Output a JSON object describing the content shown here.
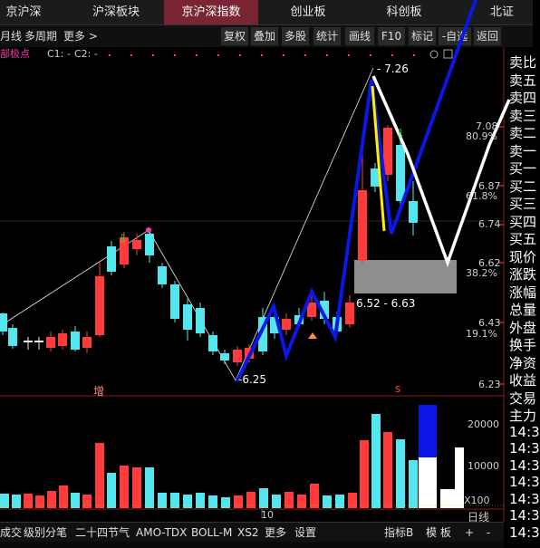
{
  "nav": {
    "tabs": [
      "京沪深",
      "沪深板块",
      "京沪深指数",
      "创业板",
      "科创板",
      "北证"
    ],
    "active_index": 2
  },
  "toolbar": {
    "left": [
      "月线",
      "多周期",
      "更多 >"
    ],
    "buttons": [
      "复权",
      "叠加",
      "多股",
      "统计",
      "画线",
      "F10",
      "标记",
      "-自选",
      "返回"
    ]
  },
  "legend": {
    "name": "部极点",
    "c1": "C1: -",
    "c2": "C2: -"
  },
  "price_axis": {
    "labels": [
      "7.08",
      "6.87",
      "6.74",
      "6.62",
      "6.43",
      "6.23"
    ],
    "percent": [
      "80.9%",
      "61.8%",
      "38.2%",
      "19.1%"
    ]
  },
  "annotations": {
    "high": "7.26",
    "low": "6.25",
    "range": "6.52 - 6.63",
    "mark_zeng": "增",
    "mark_s": "s"
  },
  "volume_axis": {
    "labels": [
      "20000",
      "10000",
      "X100"
    ]
  },
  "date_label": "10",
  "period_label": "日线",
  "bottom_tabs": [
    "成交",
    "级别分笔",
    "二十四节气",
    "AMO-TDX",
    "BOLL-M",
    "XS2",
    "更多",
    "设置"
  ],
  "bottom_right": [
    "指标B",
    "模 板",
    "+",
    "-"
  ],
  "side_panel": [
    "卖比",
    "卖五",
    "卖四",
    "卖三",
    "卖二",
    "卖一",
    "买一",
    "买二",
    "买三",
    "买四",
    "买五",
    "现价",
    "涨跌",
    "涨幅",
    "总量",
    "外盘",
    "换手",
    "净资",
    "收益",
    "交易",
    "主力",
    "14:3",
    "14:3",
    "14:3",
    "14:3",
    "14:3",
    "14:3",
    "14:3"
  ],
  "colors": {
    "up": "#ff3b3b",
    "down": "#54e6ef",
    "zigzag": "#0b17e6",
    "white_line": "#ffffff",
    "yellow": "#ffee00",
    "active_tab": "#7a2534",
    "legend_pink": "#ff2fb0"
  }
}
